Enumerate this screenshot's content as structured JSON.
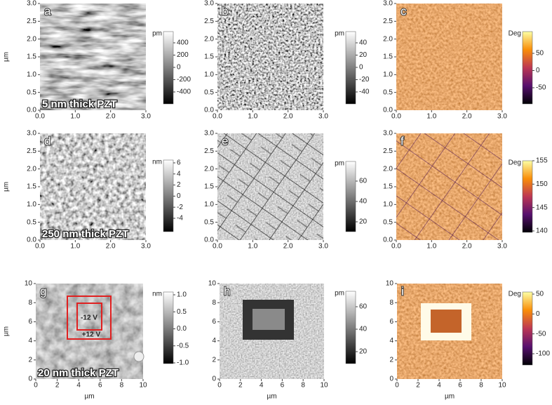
{
  "panels": [
    {
      "letter": "a",
      "xticks": [
        "0.0",
        "1.0",
        "2.0",
        "3.0"
      ],
      "yticks": [
        "0.0",
        "0.5",
        "1.0",
        "1.5",
        "2.0",
        "2.5",
        "3.0"
      ],
      "yaxis": "µm",
      "cbar": {
        "unit": "pm",
        "ticks": [
          "400",
          "200",
          "0",
          "-200",
          "-400"
        ]
      },
      "caption": "5 nm thick PZT"
    },
    {
      "letter": "b",
      "xticks": [
        "0.0",
        "1.0",
        "2.0",
        "3.0"
      ],
      "yticks": [
        "0.0",
        "0.5",
        "1.0",
        "1.5",
        "2.0",
        "2.5",
        "3.0"
      ],
      "cbar": {
        "unit": "pm",
        "ticks": [
          "40",
          "20",
          "0",
          "-20",
          "-40"
        ]
      }
    },
    {
      "letter": "c",
      "xticks": [
        "0.0",
        "1.0",
        "2.0",
        "3.0"
      ],
      "yticks": [
        "0.0",
        "0.5",
        "1.0",
        "1.5",
        "2.0",
        "2.5",
        "3.0"
      ],
      "cbar": {
        "unit": "Deg",
        "ticks": [
          "50",
          "0",
          "-50"
        ]
      }
    },
    {
      "letter": "d",
      "xticks": [
        "0.0",
        "1.0",
        "2.0",
        "3.0"
      ],
      "yticks": [
        "0.0",
        "0.5",
        "1.0",
        "1.5",
        "2.0",
        "2.5",
        "3.0"
      ],
      "yaxis": "µm",
      "cbar": {
        "unit": "nm",
        "ticks": [
          "6",
          "4",
          "2",
          "0",
          "-2",
          "-4"
        ]
      },
      "caption": "250 nm thick PZT"
    },
    {
      "letter": "e",
      "xticks": [
        "0.0",
        "1.0",
        "2.0",
        "3.0"
      ],
      "yticks": [
        "0.0",
        "0.5",
        "1.0",
        "1.5",
        "2.0",
        "2.5",
        "3.0"
      ],
      "cbar": {
        "unit": "pm",
        "ticks": [
          "60",
          "40",
          "20"
        ]
      }
    },
    {
      "letter": "f",
      "xticks": [
        "0.0",
        "1.0",
        "2.0",
        "3.0"
      ],
      "yticks": [
        "0.0",
        "0.5",
        "1.0",
        "1.5",
        "2.0",
        "2.5",
        "3.0"
      ],
      "cbar": {
        "unit": "Deg",
        "ticks": [
          "155",
          "150",
          "145",
          "140"
        ]
      }
    },
    {
      "letter": "g",
      "xticks": [
        "0",
        "2",
        "4",
        "6",
        "8",
        "10"
      ],
      "yticks": [
        "0",
        "2",
        "4",
        "6",
        "8",
        "10"
      ],
      "yaxis": "µm",
      "xaxis": "µm",
      "cbar": {
        "unit": "nm",
        "ticks": [
          "1.0",
          "0.5",
          "0.0",
          "-0.5",
          "-1.0"
        ]
      },
      "caption": "20 nm thick PZT",
      "annotations": [
        "-12 V",
        "+12 V"
      ]
    },
    {
      "letter": "h",
      "xticks": [
        "0",
        "2",
        "4",
        "6",
        "8",
        "10"
      ],
      "yticks": [
        "0",
        "2",
        "4",
        "6",
        "8",
        "10"
      ],
      "xaxis": "µm",
      "cbar": {
        "unit": "pm",
        "ticks": [
          "60",
          "40",
          "20"
        ]
      }
    },
    {
      "letter": "i",
      "xticks": [
        "0",
        "2",
        "4",
        "6",
        "8",
        "10"
      ],
      "yticks": [
        "0",
        "2",
        "4",
        "6",
        "8",
        "10"
      ],
      "xaxis": "µm",
      "cbar": {
        "unit": "Deg",
        "ticks": [
          "50",
          "0",
          "-50",
          "-100"
        ]
      }
    }
  ]
}
